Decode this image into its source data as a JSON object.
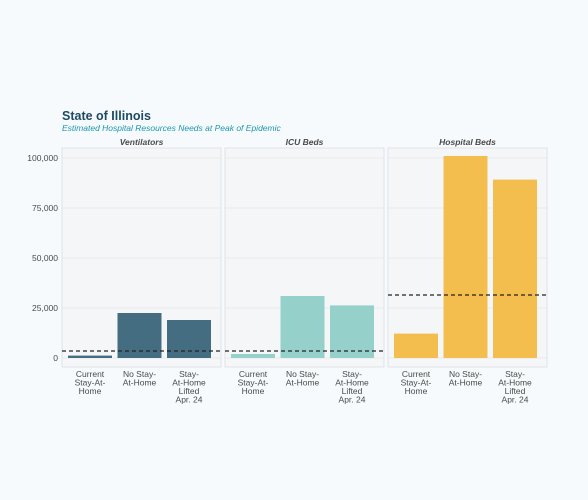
{
  "chart_data": {
    "type": "bar",
    "title": "State of Illinois",
    "subtitle": "Estimated Hospital Resources Needs at Peak of Epidemic",
    "categories": [
      "Current Stay-At-Home",
      "No Stay-At-Home",
      "Stay-At-Home Lifted Apr. 24"
    ],
    "category_labels": [
      [
        "Current",
        "Stay-At-",
        "Home"
      ],
      [
        "No Stay-",
        "At-Home"
      ],
      [
        "Stay-",
        "At-Home",
        "Lifted",
        "Apr. 24"
      ]
    ],
    "yticks": [
      0,
      25000,
      50000,
      75000,
      100000
    ],
    "ytick_labels": [
      "0",
      "25,000",
      "50,000",
      "75,000",
      "100,000"
    ],
    "ylim": [
      -4500,
      105000
    ],
    "grid": true,
    "panels": [
      {
        "name": "Ventilators",
        "values": [
          1200,
          22500,
          19000
        ],
        "capacity": 3500,
        "color": "#456d82"
      },
      {
        "name": "ICU Beds",
        "values": [
          2000,
          31000,
          26300
        ],
        "capacity": 3500,
        "color": "#95d0ca"
      },
      {
        "name": "Hospital Beds",
        "values": [
          12200,
          101000,
          89200
        ],
        "capacity": 31500,
        "color": "#f4be4e"
      }
    ]
  }
}
